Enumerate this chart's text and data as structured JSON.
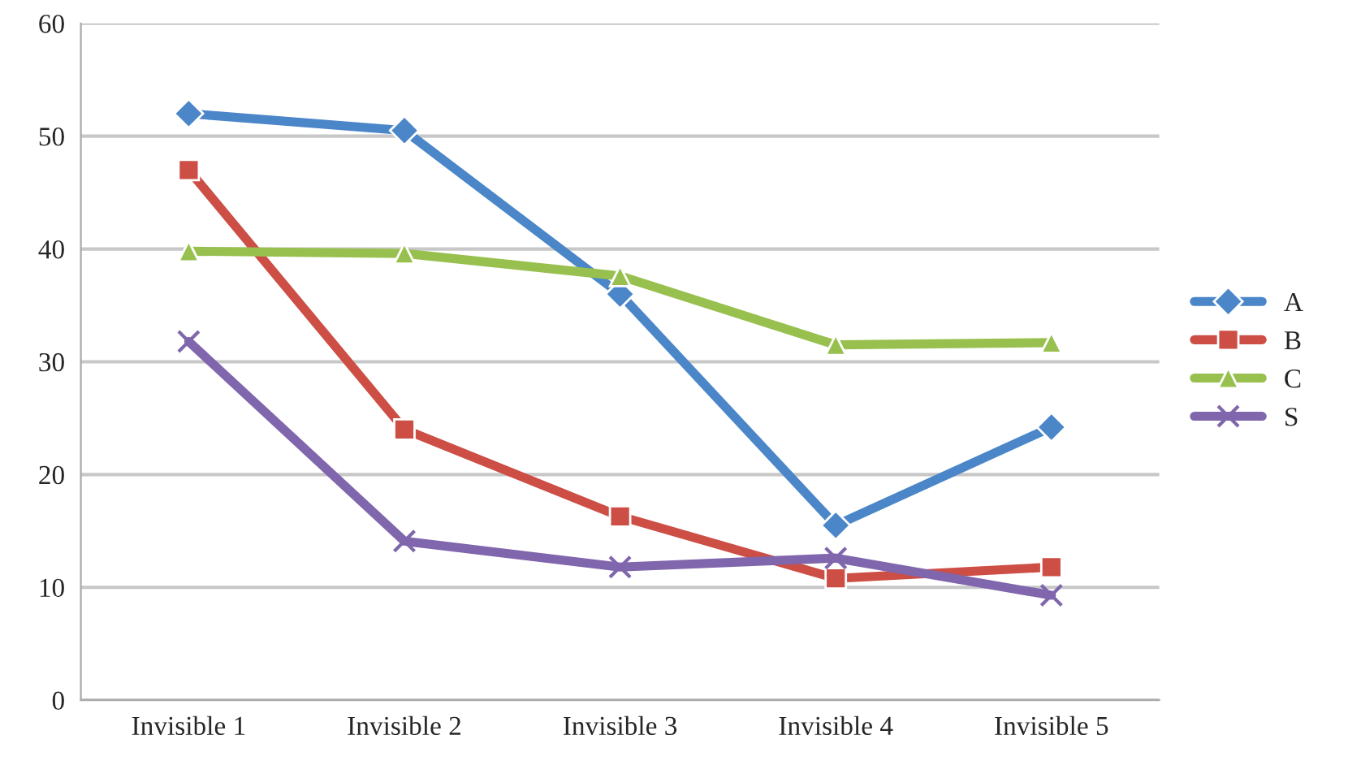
{
  "chart_data": {
    "type": "line",
    "categories": [
      "Invisible 1",
      "Invisible 2",
      "Invisible 3",
      "Invisible 4",
      "Invisible 5"
    ],
    "series": [
      {
        "name": "A",
        "color": "#4a86c8",
        "marker": "diamond",
        "values": [
          52,
          50.5,
          36,
          15.5,
          24.2
        ]
      },
      {
        "name": "B",
        "color": "#cc4e45",
        "marker": "square",
        "values": [
          47,
          24,
          16.3,
          10.8,
          11.8
        ]
      },
      {
        "name": "C",
        "color": "#98c04f",
        "marker": "triangle",
        "values": [
          39.8,
          39.6,
          37.6,
          31.5,
          31.7
        ]
      },
      {
        "name": "S",
        "color": "#8066ac",
        "marker": "cross",
        "values": [
          31.8,
          14.1,
          11.8,
          12.6,
          9.3
        ]
      }
    ],
    "ylim": [
      0,
      60
    ],
    "yticks": [
      0,
      10,
      20,
      30,
      40,
      50,
      60
    ],
    "grid": "y",
    "legend": "right",
    "line_style": "solid"
  }
}
